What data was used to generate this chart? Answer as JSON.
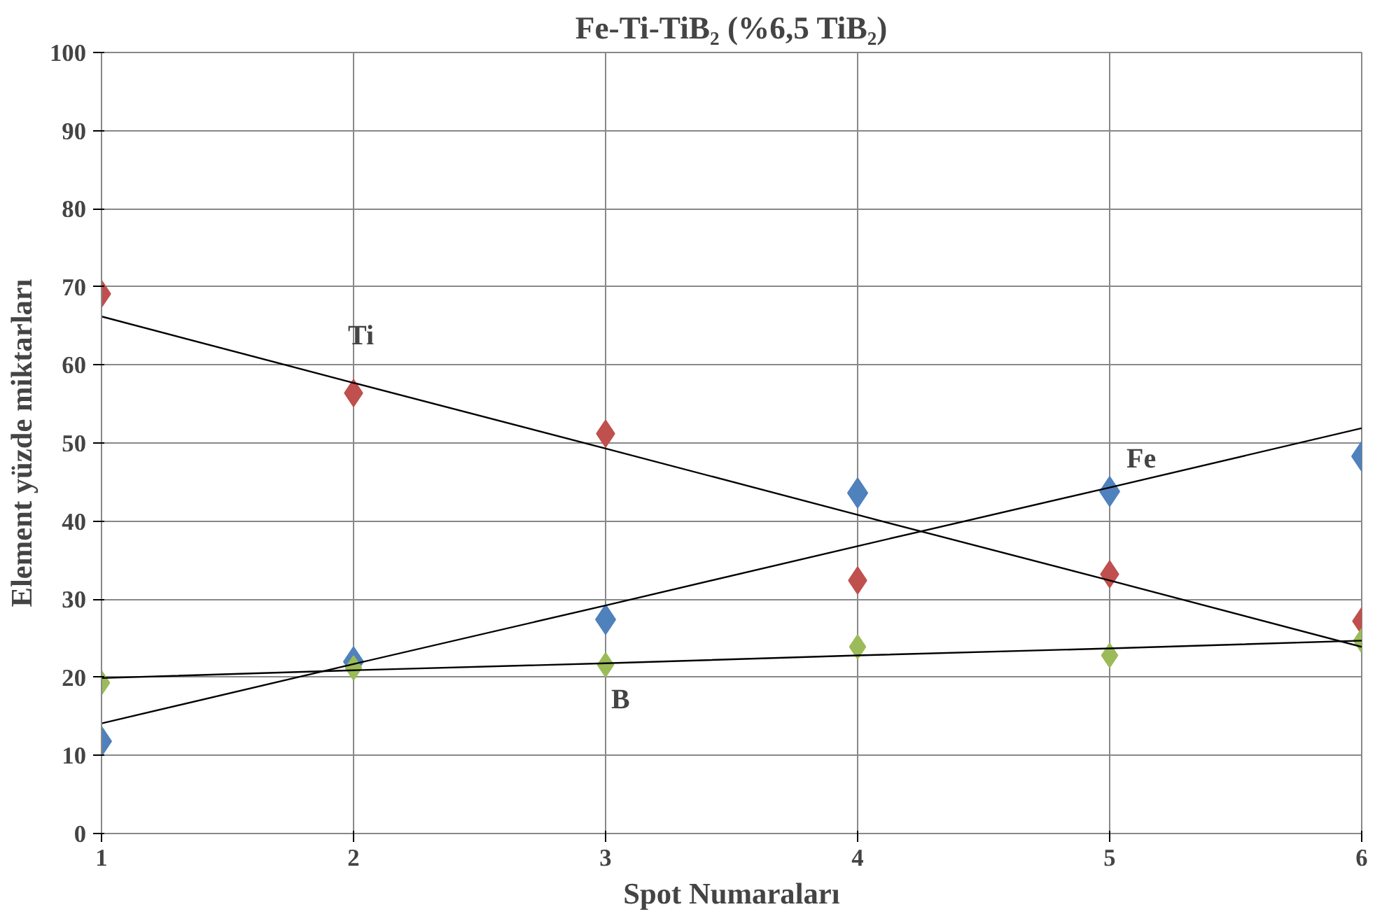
{
  "chart_data": {
    "type": "scatter",
    "title": "Fe-Ti-TiB₂ (%6,5 TiB₂)",
    "xlabel": "Spot Numaraları",
    "ylabel": "Element yüzde miktarları",
    "x": [
      1,
      2,
      3,
      4,
      5,
      6
    ],
    "xlim": [
      1,
      6
    ],
    "xticks": [
      1,
      2,
      3,
      4,
      5,
      6
    ],
    "ylim": [
      0,
      100
    ],
    "yticks": [
      0,
      10,
      20,
      30,
      40,
      50,
      60,
      70,
      80,
      90,
      100
    ],
    "grid": true,
    "legend": false,
    "marker": "diamond",
    "series": [
      {
        "name": "Fe",
        "color": "#4f81bd",
        "values": [
          11.8,
          22.0,
          27.4,
          43.6,
          43.8,
          48.3
        ]
      },
      {
        "name": "Ti",
        "color": "#c0504d",
        "values": [
          69.1,
          56.4,
          51.2,
          32.4,
          33.2,
          27.2
        ]
      },
      {
        "name": "B",
        "color": "#9bbb59",
        "values": [
          19.3,
          21.2,
          21.6,
          23.9,
          22.8,
          24.7
        ]
      },
      {
        "type": "line",
        "marker": "none",
        "color": "#000000",
        "values": [
          14.1,
          21.7,
          29.2,
          36.8,
          44.3,
          51.9
        ]
      },
      {
        "type": "line",
        "marker": "none",
        "color": "#000000",
        "values": [
          66.2,
          57.7,
          49.3,
          40.8,
          32.4,
          23.9
        ]
      },
      {
        "type": "line",
        "marker": "none",
        "color": "#000000",
        "values": [
          19.9,
          20.9,
          21.8,
          22.8,
          23.7,
          24.7
        ]
      }
    ]
  }
}
